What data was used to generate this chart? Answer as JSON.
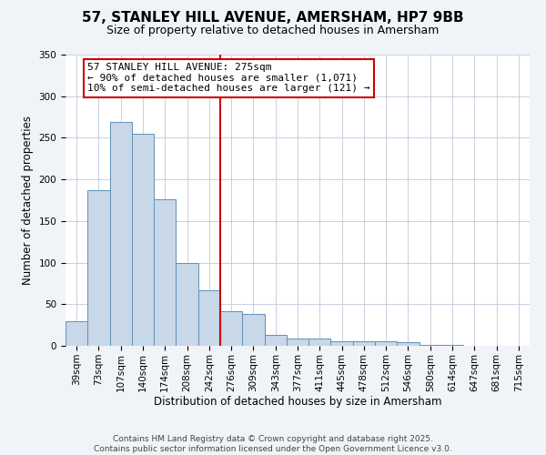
{
  "title": "57, STANLEY HILL AVENUE, AMERSHAM, HP7 9BB",
  "subtitle": "Size of property relative to detached houses in Amersham",
  "xlabel": "Distribution of detached houses by size in Amersham",
  "ylabel": "Number of detached properties",
  "bar_labels": [
    "39sqm",
    "73sqm",
    "107sqm",
    "140sqm",
    "174sqm",
    "208sqm",
    "242sqm",
    "276sqm",
    "309sqm",
    "343sqm",
    "377sqm",
    "411sqm",
    "445sqm",
    "478sqm",
    "512sqm",
    "546sqm",
    "580sqm",
    "614sqm",
    "647sqm",
    "681sqm",
    "715sqm"
  ],
  "bar_values": [
    29,
    187,
    269,
    255,
    176,
    100,
    67,
    42,
    38,
    13,
    9,
    9,
    6,
    5,
    5,
    4,
    1,
    1,
    0,
    0,
    0
  ],
  "bar_color": "#c8d8e8",
  "bar_edge_color": "#6090b8",
  "vline_color": "#cc0000",
  "annotation_line0": "57 STANLEY HILL AVENUE: 275sqm",
  "annotation_line1": "← 90% of detached houses are smaller (1,071)",
  "annotation_line2": "10% of semi-detached houses are larger (121) →",
  "annotation_box_color": "#cc0000",
  "ylim": [
    0,
    350
  ],
  "yticks": [
    0,
    50,
    100,
    150,
    200,
    250,
    300,
    350
  ],
  "footer1": "Contains HM Land Registry data © Crown copyright and database right 2025.",
  "footer2": "Contains public sector information licensed under the Open Government Licence v3.0.",
  "background_color": "#f0f4f8",
  "plot_bg_color": "#ffffff",
  "title_fontsize": 11,
  "subtitle_fontsize": 9,
  "axis_label_fontsize": 8.5,
  "tick_fontsize": 7.5,
  "annotation_fontsize": 8,
  "footer_fontsize": 6.5
}
